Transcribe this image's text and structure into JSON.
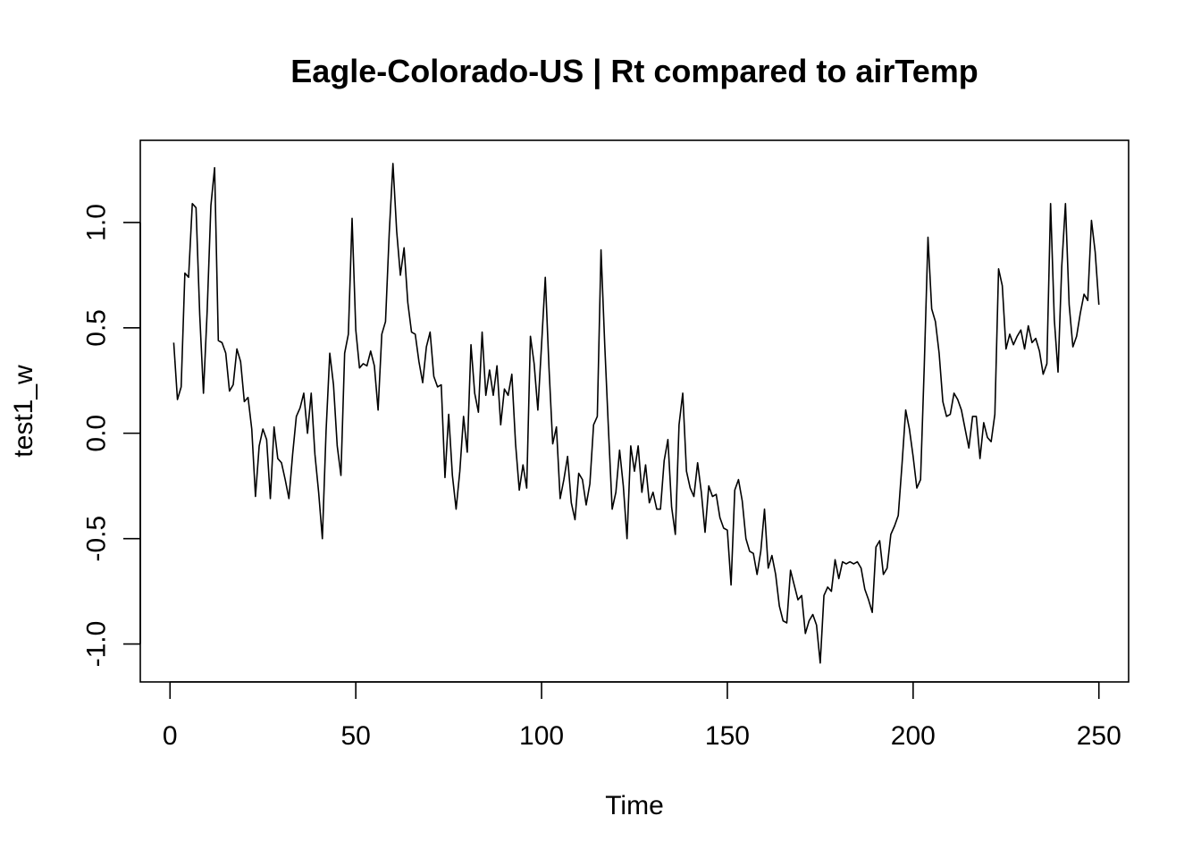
{
  "chart_data": {
    "type": "line",
    "title": "Eagle-Colorado-US | Rt compared to airTemp",
    "xlabel": "Time",
    "ylabel": "test1_w",
    "xlim": [
      -8,
      258
    ],
    "ylim": [
      -1.18,
      1.39
    ],
    "x_ticks": [
      0,
      50,
      100,
      150,
      200,
      250
    ],
    "y_ticks": [
      -1.0,
      -0.5,
      0.0,
      0.5,
      1.0
    ],
    "y_tick_labels": [
      "-1.0",
      "-0.5",
      "0.0",
      "0.5",
      "1.0"
    ],
    "grid": false,
    "series": [
      {
        "x_start": 1,
        "values": [
          0.43,
          0.16,
          0.22,
          0.76,
          0.74,
          1.09,
          1.07,
          0.56,
          0.19,
          0.58,
          1.08,
          1.26,
          0.44,
          0.43,
          0.38,
          0.2,
          0.23,
          0.4,
          0.34,
          0.15,
          0.17,
          0.02,
          -0.3,
          -0.06,
          0.02,
          -0.03,
          -0.31,
          0.03,
          -0.12,
          -0.14,
          -0.22,
          -0.31,
          -0.1,
          0.08,
          0.12,
          0.19,
          0.0,
          0.19,
          -0.1,
          -0.28,
          -0.5,
          0.01,
          0.38,
          0.23,
          -0.06,
          -0.2,
          0.38,
          0.47,
          1.02,
          0.49,
          0.31,
          0.33,
          0.32,
          0.39,
          0.32,
          0.11,
          0.47,
          0.53,
          0.95,
          1.28,
          0.96,
          0.75,
          0.88,
          0.62,
          0.48,
          0.47,
          0.34,
          0.24,
          0.41,
          0.48,
          0.27,
          0.22,
          0.23,
          -0.21,
          0.09,
          -0.2,
          -0.36,
          -0.18,
          0.08,
          -0.09,
          0.42,
          0.19,
          0.1,
          0.48,
          0.18,
          0.3,
          0.18,
          0.32,
          0.04,
          0.21,
          0.18,
          0.28,
          -0.05,
          -0.27,
          -0.15,
          -0.26,
          0.46,
          0.33,
          0.11,
          0.42,
          0.74,
          0.31,
          -0.05,
          0.03,
          -0.31,
          -0.22,
          -0.11,
          -0.33,
          -0.41,
          -0.19,
          -0.22,
          -0.34,
          -0.24,
          0.04,
          0.08,
          0.87,
          0.42,
          0.02,
          -0.36,
          -0.28,
          -0.08,
          -0.25,
          -0.5,
          -0.06,
          -0.18,
          -0.06,
          -0.28,
          -0.15,
          -0.33,
          -0.28,
          -0.36,
          -0.36,
          -0.13,
          -0.03,
          -0.35,
          -0.48,
          0.04,
          0.19,
          -0.18,
          -0.26,
          -0.3,
          -0.14,
          -0.28,
          -0.47,
          -0.25,
          -0.3,
          -0.29,
          -0.4,
          -0.45,
          -0.46,
          -0.72,
          -0.27,
          -0.22,
          -0.32,
          -0.5,
          -0.56,
          -0.57,
          -0.67,
          -0.56,
          -0.36,
          -0.64,
          -0.58,
          -0.67,
          -0.82,
          -0.89,
          -0.9,
          -0.65,
          -0.72,
          -0.79,
          -0.77,
          -0.95,
          -0.89,
          -0.86,
          -0.91,
          -1.09,
          -0.77,
          -0.73,
          -0.75,
          -0.6,
          -0.69,
          -0.61,
          -0.62,
          -0.61,
          -0.62,
          -0.61,
          -0.64,
          -0.74,
          -0.79,
          -0.85,
          -0.54,
          -0.51,
          -0.67,
          -0.64,
          -0.48,
          -0.44,
          -0.39,
          -0.15,
          0.11,
          0.02,
          -0.11,
          -0.26,
          -0.22,
          0.32,
          0.93,
          0.59,
          0.53,
          0.38,
          0.15,
          0.08,
          0.09,
          0.19,
          0.16,
          0.11,
          0.02,
          -0.07,
          0.08,
          0.08,
          -0.12,
          0.05,
          -0.02,
          -0.04,
          0.09,
          0.78,
          0.7,
          0.4,
          0.47,
          0.42,
          0.46,
          0.49,
          0.4,
          0.51,
          0.43,
          0.45,
          0.39,
          0.28,
          0.33,
          1.09,
          0.54,
          0.29,
          0.79,
          1.09,
          0.61,
          0.41,
          0.46,
          0.57,
          0.66,
          0.63,
          1.01,
          0.86,
          0.61
        ]
      }
    ]
  }
}
